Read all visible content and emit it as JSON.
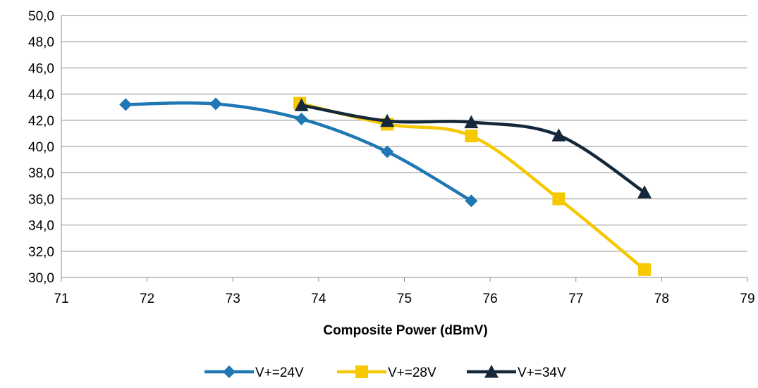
{
  "chart_data": {
    "type": "line",
    "title": "",
    "xlabel": "Composite Power (dBmV)",
    "ylabel": "",
    "xlim": [
      71,
      79
    ],
    "ylim": [
      30,
      50
    ],
    "x_ticks": [
      "71",
      "72",
      "73",
      "74",
      "75",
      "76",
      "77",
      "78",
      "79"
    ],
    "y_ticks": [
      "30,0",
      "32,0",
      "34,0",
      "36,0",
      "38,0",
      "40,0",
      "42,0",
      "44,0",
      "46,0",
      "48,0",
      "50,0"
    ],
    "grid": "horizontal",
    "legend_position": "bottom",
    "series": [
      {
        "name": "V+=24V",
        "color": "#1F77B4",
        "marker": "diamond",
        "points": [
          [
            71.75,
            43.2
          ],
          [
            72.8,
            43.25
          ],
          [
            73.8,
            42.1
          ],
          [
            74.8,
            39.6
          ],
          [
            75.78,
            35.85
          ]
        ]
      },
      {
        "name": "V+=28V",
        "color": "#F5C800",
        "marker": "square",
        "points": [
          [
            73.78,
            43.3
          ],
          [
            74.8,
            41.7
          ],
          [
            75.78,
            40.8
          ],
          [
            76.8,
            36.0
          ],
          [
            77.8,
            30.6
          ]
        ]
      },
      {
        "name": "V+=34V",
        "color": "#14283A",
        "marker": "triangle",
        "points": [
          [
            73.8,
            43.15
          ],
          [
            74.8,
            41.95
          ],
          [
            75.78,
            41.85
          ],
          [
            76.8,
            40.85
          ],
          [
            77.8,
            36.5
          ]
        ]
      }
    ]
  }
}
